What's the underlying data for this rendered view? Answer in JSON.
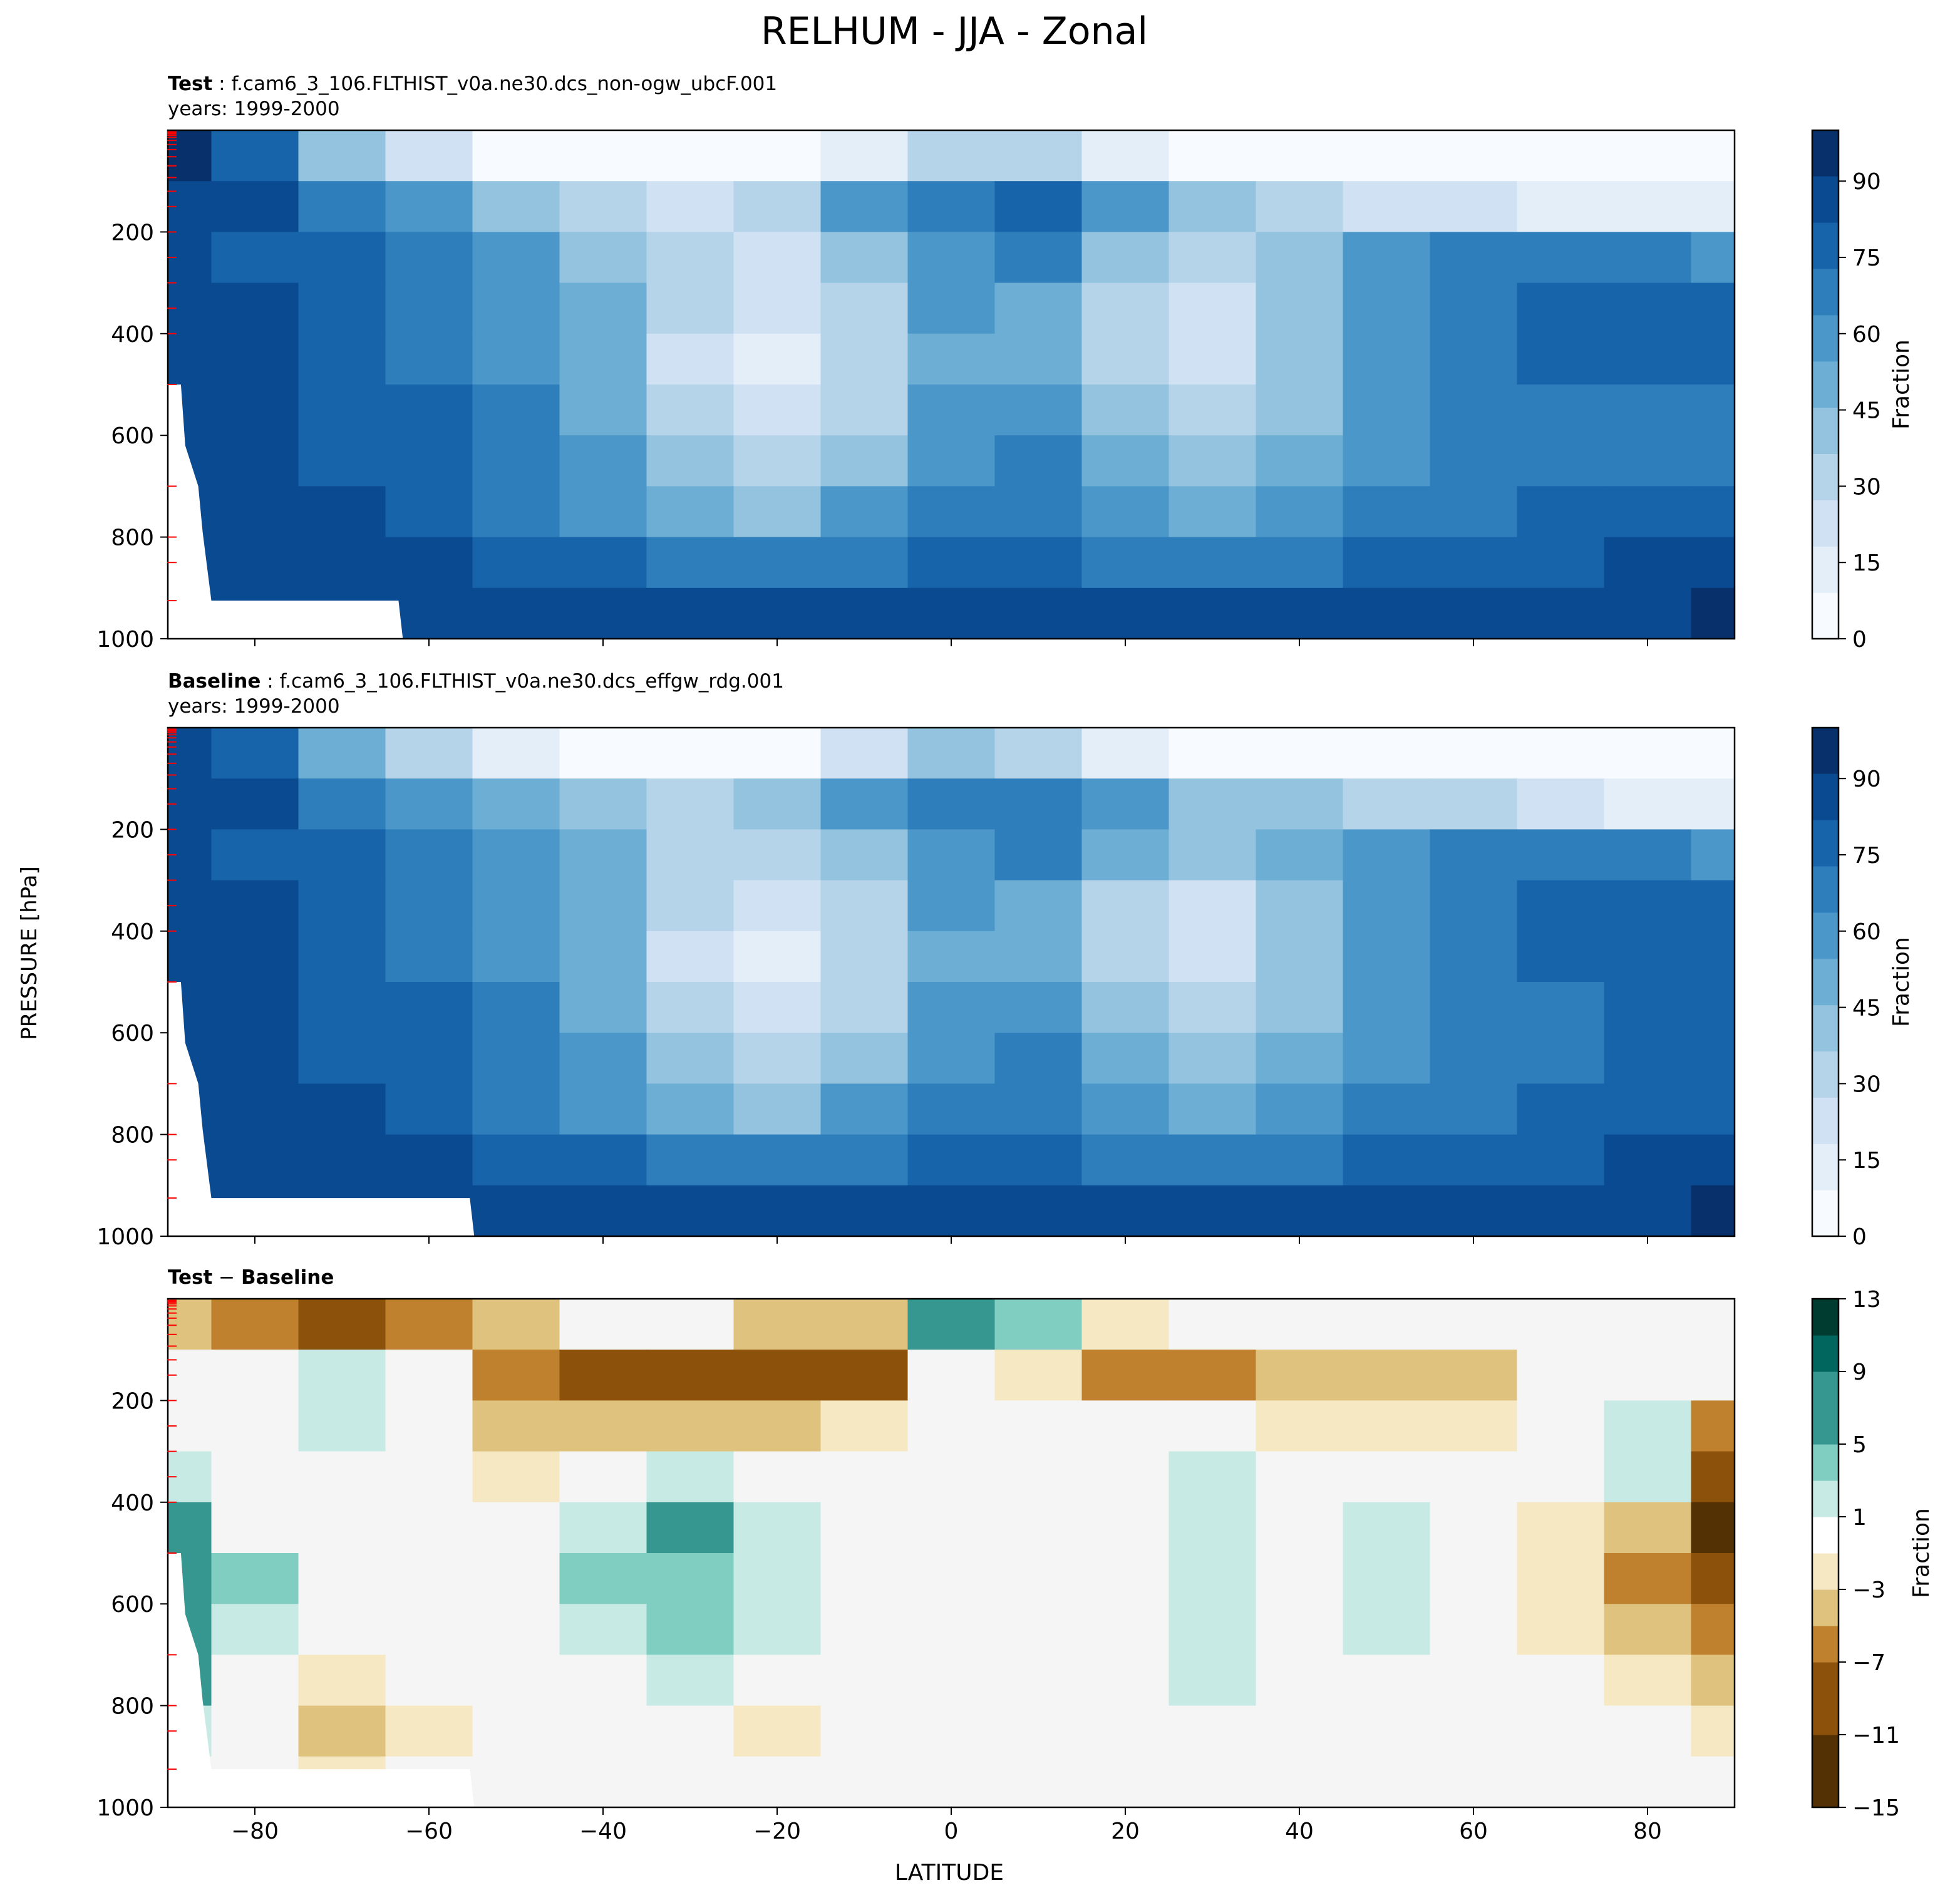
{
  "title": "RELHUM - JJA - Zonal",
  "panels": [
    {
      "prefix": "Test",
      "case": "f.cam6_3_106.FLTHIST_v0a.ne30.dcs_non-ogw_ubcF.001",
      "years": "years: 1999-2000"
    },
    {
      "prefix": "Baseline",
      "case": "f.cam6_3_106.FLTHIST_v0a.ne30.dcs_effgw_rdg.001",
      "years": "years: 1999-2000"
    },
    {
      "prefix": "Test",
      "operator": " − ",
      "prefix2": "Baseline"
    }
  ],
  "colors": {
    "relhum": [
      "#f7fbff",
      "#e3eef9",
      "#cfe1f2",
      "#b5d4e9",
      "#93c3df",
      "#6daed5",
      "#4b97c9",
      "#2f7ebc",
      "#1864aa",
      "#0a4a90",
      "#08306b"
    ],
    "diff_neg": [
      "#543005",
      "#8c510a",
      "#bf812d",
      "#dfc27d",
      "#f6e8c3"
    ],
    "diff_zero": "#f5f5f5",
    "diff_pos": [
      "#c7eae5",
      "#80cdc1",
      "#35978f",
      "#01665e",
      "#003c30"
    ],
    "missing": "#ffffff",
    "hybrid_tick": "#ff0000"
  },
  "chart_data": [
    {
      "type": "heatmap",
      "panel": "test",
      "xlabel": "",
      "ylabel": "",
      "xlim": [
        -90,
        90
      ],
      "ylim": [
        1000,
        0
      ],
      "yticks": [
        "200",
        "400",
        "600",
        "800",
        "1000"
      ],
      "colorbar": {
        "label": "Fraction",
        "range": [
          0,
          100
        ],
        "ticks": [
          "0",
          "15",
          "30",
          "45",
          "60",
          "75",
          "90"
        ]
      },
      "latitudes": [
        -90,
        -80,
        -70,
        -60,
        -50,
        -40,
        -30,
        -20,
        -10,
        0,
        10,
        20,
        30,
        40,
        50,
        60,
        70,
        80,
        90
      ],
      "pressures": [
        50,
        150,
        250,
        350,
        450,
        550,
        650,
        750,
        850,
        950
      ],
      "values": [
        [
          92,
          75,
          45,
          20,
          8,
          5,
          5,
          5,
          10,
          30,
          30,
          10,
          5,
          5,
          5,
          5,
          5,
          5,
          5
        ],
        [
          88,
          82,
          70,
          55,
          40,
          30,
          25,
          35,
          55,
          72,
          75,
          55,
          40,
          30,
          25,
          20,
          15,
          10,
          10
        ],
        [
          86,
          80,
          75,
          70,
          60,
          45,
          30,
          25,
          40,
          62,
          68,
          45,
          35,
          45,
          60,
          70,
          72,
          70,
          55
        ],
        [
          86,
          82,
          78,
          72,
          62,
          50,
          28,
          20,
          35,
          55,
          52,
          35,
          25,
          38,
          55,
          70,
          76,
          76,
          75
        ],
        [
          88,
          84,
          80,
          72,
          62,
          48,
          25,
          18,
          32,
          50,
          48,
          32,
          22,
          38,
          58,
          70,
          75,
          76,
          76
        ],
        [
          90,
          84,
          80,
          74,
          64,
          50,
          30,
          20,
          35,
          55,
          55,
          38,
          28,
          40,
          58,
          68,
          72,
          72,
          72
        ],
        [
          90,
          86,
          80,
          76,
          66,
          55,
          38,
          30,
          45,
          62,
          65,
          48,
          38,
          48,
          60,
          68,
          72,
          72,
          72
        ],
        [
          90,
          86,
          82,
          78,
          70,
          60,
          50,
          42,
          55,
          68,
          72,
          58,
          50,
          58,
          66,
          72,
          74,
          75,
          76
        ],
        [
          90,
          88,
          86,
          84,
          80,
          74,
          68,
          64,
          70,
          78,
          80,
          72,
          68,
          72,
          76,
          78,
          80,
          82,
          84
        ],
        [
          90,
          88,
          88,
          88,
          86,
          84,
          82,
          82,
          84,
          86,
          86,
          84,
          82,
          82,
          82,
          84,
          86,
          88,
          92
        ]
      ]
    },
    {
      "type": "heatmap",
      "panel": "baseline",
      "xlabel": "",
      "ylabel": "PRESSURE [hPa]",
      "xlim": [
        -90,
        90
      ],
      "ylim": [
        1000,
        0
      ],
      "yticks": [
        "200",
        "400",
        "600",
        "800",
        "1000"
      ],
      "colorbar": {
        "label": "Fraction",
        "range": [
          0,
          100
        ],
        "ticks": [
          "0",
          "15",
          "30",
          "45",
          "60",
          "75",
          "90"
        ]
      },
      "latitudes": [
        -90,
        -80,
        -70,
        -60,
        -50,
        -40,
        -30,
        -20,
        -10,
        0,
        10,
        20,
        30,
        40,
        50,
        60,
        70,
        80,
        90
      ],
      "pressures": [
        50,
        150,
        250,
        350,
        450,
        550,
        650,
        750,
        850,
        950
      ],
      "values": [
        [
          90,
          75,
          50,
          28,
          12,
          8,
          5,
          8,
          20,
          38,
          32,
          12,
          8,
          8,
          8,
          8,
          8,
          8,
          8
        ],
        [
          88,
          82,
          72,
          60,
          48,
          38,
          32,
          45,
          62,
          70,
          72,
          58,
          45,
          38,
          32,
          28,
          20,
          15,
          15
        ],
        [
          86,
          80,
          75,
          70,
          62,
          50,
          35,
          30,
          42,
          62,
          66,
          48,
          38,
          46,
          60,
          70,
          72,
          72,
          62
        ],
        [
          86,
          82,
          78,
          72,
          62,
          50,
          28,
          22,
          36,
          55,
          52,
          36,
          26,
          38,
          55,
          70,
          76,
          76,
          78
        ],
        [
          86,
          82,
          78,
          72,
          62,
          48,
          25,
          18,
          32,
          50,
          48,
          32,
          22,
          38,
          58,
          70,
          75,
          76,
          80
        ],
        [
          88,
          82,
          80,
          74,
          64,
          50,
          30,
          22,
          35,
          55,
          55,
          38,
          28,
          40,
          58,
          68,
          72,
          74,
          76
        ],
        [
          88,
          84,
          80,
          76,
          66,
          55,
          38,
          32,
          45,
          62,
          65,
          48,
          38,
          48,
          60,
          68,
          72,
          74,
          74
        ],
        [
          88,
          84,
          82,
          78,
          70,
          60,
          50,
          44,
          55,
          68,
          72,
          58,
          50,
          58,
          66,
          72,
          74,
          76,
          78
        ],
        [
          88,
          86,
          86,
          84,
          80,
          74,
          68,
          64,
          70,
          78,
          80,
          72,
          68,
          72,
          76,
          78,
          80,
          82,
          84
        ],
        [
          90,
          88,
          88,
          88,
          86,
          84,
          82,
          82,
          84,
          86,
          86,
          84,
          82,
          82,
          82,
          84,
          86,
          88,
          92
        ]
      ]
    },
    {
      "type": "heatmap",
      "panel": "difference",
      "xlabel": "LATITUDE",
      "ylabel": "",
      "xlim": [
        -90,
        90
      ],
      "ylim": [
        1000,
        0
      ],
      "xticks": [
        "−80",
        "−60",
        "−40",
        "−20",
        "0",
        "20",
        "40",
        "60",
        "80"
      ],
      "yticks": [
        "200",
        "400",
        "600",
        "800",
        "1000"
      ],
      "colorbar": {
        "label": "Fraction",
        "range": [
          -15,
          13
        ],
        "ticks": [
          "−15",
          "−11",
          "−7",
          "−3",
          "1",
          "5",
          "9",
          "13"
        ]
      },
      "latitudes": [
        -90,
        -80,
        -70,
        -60,
        -50,
        -40,
        -30,
        -20,
        -10,
        0,
        10,
        20,
        30,
        40,
        50,
        60,
        70,
        80,
        90
      ],
      "pressures": [
        50,
        150,
        250,
        350,
        450,
        550,
        650,
        750,
        850,
        950
      ],
      "values": [
        [
          -4,
          -5,
          -8,
          -6,
          -3,
          -1,
          -1,
          -3,
          -4,
          8,
          3,
          -2,
          -1,
          0,
          0,
          0,
          0,
          0,
          0
        ],
        [
          -1,
          0,
          2,
          -1,
          -5,
          -7,
          -8,
          -10,
          -8,
          0,
          -2,
          -5,
          -5,
          -4,
          -4,
          -3,
          -1,
          0,
          0
        ],
        [
          -1,
          0,
          2,
          0,
          -3,
          -4,
          -4,
          -3,
          -2,
          0,
          0,
          -1,
          -1,
          -2,
          -2,
          -2,
          0,
          2,
          -6
        ],
        [
          2,
          0,
          0,
          0,
          -2,
          0,
          2,
          1,
          0,
          0,
          0,
          0,
          2,
          0,
          1,
          0,
          0,
          2,
          -10
        ],
        [
          6,
          1,
          0,
          0,
          -1,
          2,
          5,
          2,
          0,
          0,
          0,
          0,
          2,
          0,
          2,
          0,
          -2,
          -4,
          -12
        ],
        [
          8,
          3,
          -1,
          0,
          -1,
          3,
          4,
          2,
          0,
          0,
          0,
          0,
          2,
          0,
          2,
          0,
          -2,
          -5,
          -10
        ],
        [
          8,
          2,
          -1,
          -1,
          -1,
          2,
          3,
          2,
          0,
          0,
          0,
          0,
          2,
          0,
          2,
          0,
          -2,
          -4,
          -6
        ],
        [
          5,
          1,
          -2,
          -1,
          0,
          1,
          2,
          1,
          0,
          0,
          0,
          0,
          2,
          0,
          1,
          0,
          -1,
          -2,
          -3
        ],
        [
          2,
          0,
          -4,
          -2,
          0,
          0,
          -1,
          -2,
          0,
          0,
          0,
          0,
          0,
          -1,
          0,
          0,
          -1,
          -1,
          -2
        ],
        [
          0,
          0,
          -2,
          -1,
          0,
          0,
          0,
          0,
          0,
          0,
          0,
          0,
          0,
          0,
          1,
          0,
          0,
          0,
          0
        ]
      ]
    }
  ]
}
